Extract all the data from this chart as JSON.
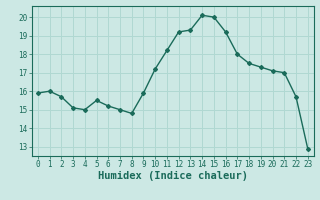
{
  "x": [
    0,
    1,
    2,
    3,
    4,
    5,
    6,
    7,
    8,
    9,
    10,
    11,
    12,
    13,
    14,
    15,
    16,
    17,
    18,
    19,
    20,
    21,
    22,
    23
  ],
  "y": [
    15.9,
    16.0,
    15.7,
    15.1,
    15.0,
    15.5,
    15.2,
    15.0,
    14.8,
    15.9,
    17.2,
    18.2,
    19.2,
    19.3,
    20.1,
    20.0,
    19.2,
    18.0,
    17.5,
    17.3,
    17.1,
    17.0,
    15.7,
    12.9
  ],
  "line_color": "#1a6b5a",
  "marker": "D",
  "marker_size": 2.0,
  "bg_color": "#cce8e4",
  "grid_color": "#b0d8d2",
  "xlabel": "Humidex (Indice chaleur)",
  "xlabel_fontsize": 7.5,
  "ylabel_ticks": [
    13,
    14,
    15,
    16,
    17,
    18,
    19,
    20
  ],
  "ylim": [
    12.5,
    20.6
  ],
  "xlim": [
    -0.5,
    23.5
  ],
  "xticks": [
    0,
    1,
    2,
    3,
    4,
    5,
    6,
    7,
    8,
    9,
    10,
    11,
    12,
    13,
    14,
    15,
    16,
    17,
    18,
    19,
    20,
    21,
    22,
    23
  ],
  "tick_fontsize": 5.5,
  "line_width": 1.0
}
